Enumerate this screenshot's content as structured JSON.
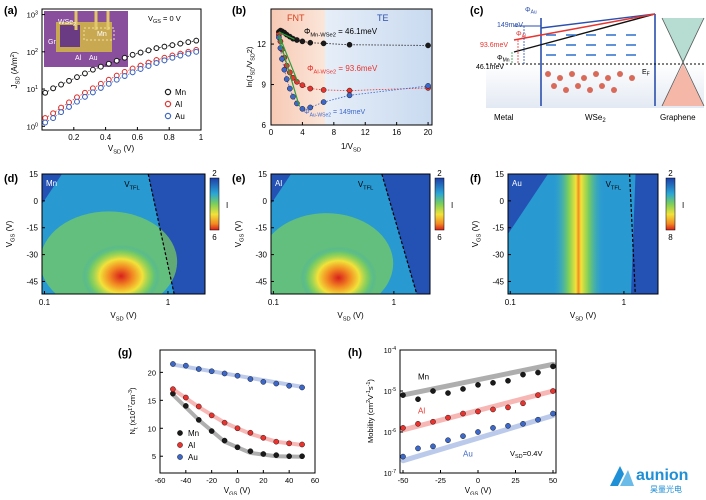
{
  "panels": {
    "a": {
      "letter": "(a)",
      "annotation": "V",
      "annotation_sub": "GS",
      "annotation_tail": " = 0 V",
      "inset_labels": {
        "wse2": "WSe",
        "wse2_sub": "2",
        "mn": "Mn",
        "gr": "Gr",
        "al": "Al",
        "au": "Au"
      }
    },
    "b": {
      "letter": "(b)",
      "region_fnt": "FNT",
      "region_te": "TE"
    },
    "c": {
      "letter": "(c)",
      "phi_au_label": "Φ",
      "phi_au_sub": "Au",
      "phi_au_val": "149meV",
      "phi_al_label": "Φ",
      "phi_al_sub": "Al",
      "phi_al_val": "93.6meV",
      "phi_mn_label": "Φ",
      "phi_mn_sub": "Mn",
      "phi_mn_val": "46.1meV",
      "ef": "E",
      "ef_sub": "F",
      "metal": "Metal",
      "wse2": "WSe",
      "wse2_sub": "2",
      "graphene": "Graphene"
    },
    "d": {
      "letter": "(d)",
      "metal": "Mn",
      "vtfl": "V",
      "vtfl_sub": "TFL",
      "cb_max": "2",
      "cb_min": "6",
      "cb_label": "I"
    },
    "e": {
      "letter": "(e)",
      "metal": "Al",
      "vtfl": "V",
      "vtfl_sub": "TFL",
      "cb_max": "2",
      "cb_min": "6",
      "cb_label": "I"
    },
    "f": {
      "letter": "(f)",
      "metal": "Au",
      "vtfl": "V",
      "vtfl_sub": "TFL",
      "cb_max": "2",
      "cb_min": "8",
      "cb_label": "I"
    },
    "g": {
      "letter": "(g)"
    },
    "h": {
      "letter": "(h)",
      "annotation": "V",
      "annotation_sub": "SD",
      "annotation_tail": "=0.4V"
    }
  },
  "brand": {
    "name": "aunion",
    "subtitle": "昊量光电",
    "color": "#1f8fd6"
  },
  "colors": {
    "Mn": "#1a1a1a",
    "Al": "#e8332e",
    "Au": "#3e68c8"
  },
  "chart_data": [
    {
      "panel": "a",
      "type": "scatter",
      "xscale": "linear",
      "yscale": "log",
      "xlabel": "V",
      "xlabel_sub": "SD",
      "xlabel_tail": " (V)",
      "ylabel": "J",
      "ylabel_sub": "SD",
      "ylabel_tail": " (A/m",
      "ylabel_sup": "2",
      "ylabel_end": ")",
      "xlim": [
        0,
        1
      ],
      "ylim_exp": [
        -0.1,
        3.15
      ],
      "xticks": [
        0.2,
        0.4,
        0.6,
        0.8,
        1
      ],
      "yticks_exp": [
        0,
        1,
        2,
        3
      ],
      "series": [
        {
          "name": "Mn",
          "x": [
            0.02,
            0.07,
            0.12,
            0.17,
            0.22,
            0.27,
            0.32,
            0.37,
            0.42,
            0.47,
            0.52,
            0.57,
            0.62,
            0.67,
            0.72,
            0.77,
            0.82,
            0.87,
            0.92,
            0.97
          ],
          "log10y": [
            0.9,
            1.02,
            1.12,
            1.22,
            1.32,
            1.42,
            1.52,
            1.6,
            1.68,
            1.76,
            1.84,
            1.92,
            1.98,
            2.04,
            2.1,
            2.14,
            2.18,
            2.22,
            2.26,
            2.3
          ]
        },
        {
          "name": "Al",
          "x": [
            0.02,
            0.07,
            0.12,
            0.17,
            0.22,
            0.27,
            0.32,
            0.37,
            0.42,
            0.47,
            0.52,
            0.57,
            0.62,
            0.67,
            0.72,
            0.77,
            0.82,
            0.87,
            0.92,
            0.97
          ],
          "log10y": [
            0.22,
            0.35,
            0.5,
            0.64,
            0.78,
            0.9,
            1.02,
            1.14,
            1.25,
            1.36,
            1.46,
            1.55,
            1.63,
            1.71,
            1.78,
            1.84,
            1.9,
            1.95,
            2.0,
            2.05
          ]
        },
        {
          "name": "Au",
          "x": [
            0.02,
            0.07,
            0.12,
            0.17,
            0.22,
            0.27,
            0.32,
            0.37,
            0.42,
            0.47,
            0.52,
            0.57,
            0.62,
            0.67,
            0.72,
            0.77,
            0.82,
            0.87,
            0.92,
            0.97
          ],
          "log10y": [
            0.1,
            0.22,
            0.38,
            0.52,
            0.66,
            0.79,
            0.91,
            1.03,
            1.14,
            1.25,
            1.35,
            1.45,
            1.54,
            1.62,
            1.7,
            1.77,
            1.84,
            1.9,
            1.95,
            2.0
          ]
        }
      ],
      "legend": "right"
    },
    {
      "panel": "b",
      "type": "scatter",
      "xlabel": "1/V",
      "xlabel_sub": "SD",
      "ylabel": "ln(J",
      "ylabel_sub": "SD",
      "ylabel_tail": "/V",
      "ylabel_sub2": "SD",
      "ylabel_sup": "2",
      "ylabel_end": ")",
      "xlim": [
        0,
        20.5
      ],
      "ylim": [
        6,
        14.6
      ],
      "xticks": [
        0,
        4,
        8,
        12,
        16,
        20
      ],
      "yticks": [
        6,
        9,
        12
      ],
      "series": [
        {
          "name": "Mn",
          "x": [
            1.0,
            1.2,
            1.4,
            1.7,
            2.0,
            2.4,
            2.8,
            3.3,
            4.0,
            5.0,
            6.7,
            10,
            20
          ],
          "y": [
            12.9,
            13.0,
            12.95,
            12.85,
            12.7,
            12.55,
            12.4,
            12.3,
            12.2,
            12.1,
            12.05,
            11.95,
            11.9
          ],
          "label": "Φ",
          "label_sub": "Mn-WSe2",
          "label_val": " = 46.1meV"
        },
        {
          "name": "Al",
          "x": [
            1.0,
            1.2,
            1.4,
            1.7,
            2.0,
            2.4,
            2.8,
            3.3,
            4.0,
            5.0,
            6.7,
            10,
            20
          ],
          "y": [
            12.7,
            12.2,
            11.6,
            11.0,
            10.4,
            9.9,
            9.5,
            9.2,
            8.95,
            8.7,
            8.6,
            8.55,
            8.75
          ],
          "label": "Φ",
          "label_sub": "Al-WSe2",
          "label_val": " = 93.6meV"
        },
        {
          "name": "Au",
          "x": [
            1.0,
            1.2,
            1.4,
            1.7,
            2.0,
            2.4,
            2.8,
            3.3,
            4.0,
            5.0,
            6.7,
            10,
            20
          ],
          "y": [
            12.5,
            11.7,
            10.9,
            10.1,
            9.4,
            8.7,
            8.1,
            7.6,
            7.2,
            7.3,
            7.7,
            8.2,
            8.9
          ],
          "label": "Φ",
          "label_sub": "Au-WSe2",
          "label_val": " = 149meV"
        }
      ]
    },
    {
      "panel": "d",
      "type": "heatmap",
      "metal": "Mn",
      "xlabel": "V",
      "xlabel_sub": "SD",
      "xlabel_tail": " (V)",
      "ylabel": "V",
      "ylabel_sub": "GS",
      "ylabel_tail": " (V)",
      "xticks": [
        "0.1",
        "1"
      ],
      "yticks": [
        15,
        0,
        -15,
        -30,
        -45
      ],
      "ylim": [
        -52,
        15
      ],
      "xlim_log10": [
        -1.02,
        0.3
      ],
      "hot": {
        "log10x": -0.38,
        "y": -42
      },
      "vtfl_line": [
        [
          -0.16,
          15
        ],
        [
          0.05,
          -52
        ]
      ]
    },
    {
      "panel": "e",
      "type": "heatmap",
      "metal": "Al",
      "xlabel": "V",
      "xlabel_sub": "SD",
      "xlabel_tail": " (V)",
      "ylabel": "V",
      "ylabel_sub": "GS",
      "ylabel_tail": " (V)",
      "xticks": [
        "0.1",
        "1"
      ],
      "yticks": [
        15,
        0,
        -15,
        -30,
        -45
      ],
      "ylim": [
        -52,
        15
      ],
      "xlim_log10": [
        -1.02,
        0.3
      ],
      "hot": {
        "log10x": -0.46,
        "y": -43
      },
      "vtfl_line": [
        [
          -0.1,
          15
        ],
        [
          0.19,
          -52
        ]
      ]
    },
    {
      "panel": "f",
      "type": "heatmap",
      "metal": "Au",
      "xlabel": "V",
      "xlabel_sub": "SD",
      "xlabel_tail": " (V)",
      "ylabel": "V",
      "ylabel_sub": "GS",
      "ylabel_tail": " (V)",
      "xticks": [
        "0.1",
        "1"
      ],
      "yticks": [
        15,
        0,
        -15,
        -30,
        -45
      ],
      "ylim": [
        -52,
        15
      ],
      "xlim_log10": [
        -1.02,
        0.3
      ],
      "hot": {
        "log10x": -0.4,
        "y": -10
      },
      "vtfl_line": [
        [
          0.05,
          15
        ],
        [
          0.1,
          -52
        ]
      ]
    },
    {
      "panel": "g",
      "type": "scatter",
      "xlabel": "V",
      "xlabel_sub": "GS",
      "xlabel_tail": " (V)",
      "ylabel": "N",
      "ylabel_sub": "t",
      "ylabel_tail": " (x10",
      "ylabel_sup": "17",
      "ylabel_mid": "cm",
      "ylabel_sup2": "-3",
      "ylabel_end": ")",
      "xlim": [
        -60,
        60
      ],
      "ylim": [
        2,
        24
      ],
      "xticks": [
        -60,
        -40,
        -20,
        0,
        20,
        40,
        60
      ],
      "yticks": [
        5,
        10,
        15,
        20
      ],
      "series": [
        {
          "name": "Mn",
          "x": [
            -50,
            -40,
            -30,
            -20,
            -10,
            0,
            10,
            20,
            30,
            40,
            50
          ],
          "y": [
            16.2,
            14.0,
            11.5,
            9.5,
            7.8,
            6.6,
            5.9,
            5.4,
            5.2,
            5.0,
            5.0
          ]
        },
        {
          "name": "Al",
          "x": [
            -50,
            -40,
            -30,
            -20,
            -10,
            0,
            10,
            20,
            30,
            40,
            50
          ],
          "y": [
            17.0,
            15.5,
            13.9,
            12.3,
            11.0,
            10.0,
            9.2,
            8.3,
            7.6,
            7.3,
            7.1
          ]
        },
        {
          "name": "Au",
          "x": [
            -50,
            -40,
            -30,
            -20,
            -10,
            0,
            10,
            20,
            30,
            40,
            50
          ],
          "y": [
            21.5,
            21.2,
            20.6,
            20.2,
            19.8,
            19.4,
            18.8,
            18.3,
            18.0,
            17.6,
            17.3
          ]
        }
      ],
      "legend": "bottom-left"
    },
    {
      "panel": "h",
      "type": "scatter",
      "yscale": "log",
      "xlabel": "V",
      "xlabel_sub": "GS",
      "xlabel_tail": " (V)",
      "ylabel": "Mobility (cm",
      "ylabel_sup": "2",
      "ylabel_mid": "V",
      "ylabel_sup2": "-1",
      "ylabel_mid2": "s",
      "ylabel_sup3": "-1",
      "ylabel_end": ")",
      "xlim": [
        -52,
        52
      ],
      "ylim_exp": [
        -7,
        -4
      ],
      "xticks": [
        -50,
        -25,
        0,
        25,
        50
      ],
      "yticks_exp": [
        -7,
        -6,
        -5,
        -4
      ],
      "series": [
        {
          "name": "Mn",
          "x": [
            -50,
            -40,
            -30,
            -20,
            -10,
            0,
            10,
            20,
            30,
            40,
            50
          ],
          "log10y": [
            -5.1,
            -5.2,
            -5.0,
            -5.05,
            -4.95,
            -4.85,
            -4.8,
            -4.75,
            -4.6,
            -4.55,
            -4.4
          ]
        },
        {
          "name": "Al",
          "x": [
            -50,
            -40,
            -30,
            -20,
            -10,
            0,
            10,
            20,
            30,
            40,
            50
          ],
          "log10y": [
            -5.9,
            -5.8,
            -5.75,
            -5.65,
            -5.55,
            -5.5,
            -5.45,
            -5.4,
            -5.3,
            -5.1,
            -5.0
          ]
        },
        {
          "name": "Au",
          "x": [
            -50,
            -40,
            -30,
            -20,
            -10,
            0,
            10,
            20,
            30,
            40,
            50
          ],
          "log10y": [
            -6.6,
            -6.4,
            -6.35,
            -6.2,
            -6.1,
            -6.0,
            -5.9,
            -5.85,
            -5.8,
            -5.7,
            -5.55
          ]
        }
      ]
    }
  ]
}
